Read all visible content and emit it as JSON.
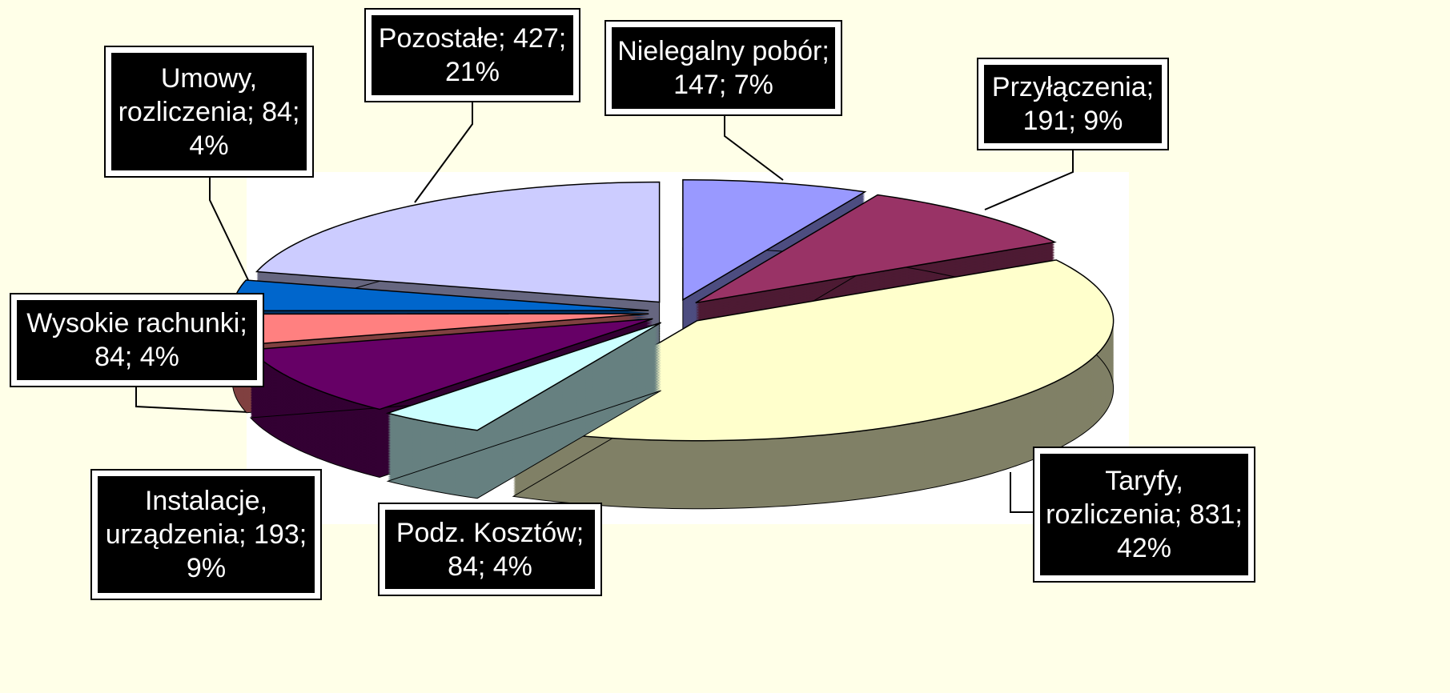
{
  "chart_data": {
    "type": "pie",
    "value_labels": [
      "Nielegalny pobór; 147; 7%",
      "Przyłączenia; 191; 9%",
      "Taryfy, rozliczenia; 831; 42%",
      "Podz. Kosztów; 84; 4%",
      "Instalacje, urządzenia; 193; 9%",
      "Wysokie rachunki; 84; 4%",
      "Umowy, rozliczenia; 84; 4%",
      "Pozostałe; 427; 21%"
    ],
    "values": [
      147,
      191,
      831,
      84,
      193,
      84,
      84,
      427
    ],
    "percentages": [
      7,
      9,
      42,
      4,
      9,
      4,
      4,
      21
    ],
    "colors": [
      "#9999ff",
      "#993366",
      "#ffffcc",
      "#ccffff",
      "#660066",
      "#ff8080",
      "#0066cc",
      "#ccccff"
    ]
  }
}
